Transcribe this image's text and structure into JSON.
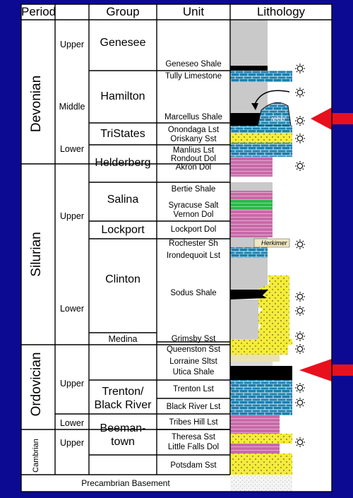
{
  "headers": {
    "period": "Period",
    "group": "Group",
    "unit": "Unit",
    "lithology": "Lithology"
  },
  "periods": {
    "devonian": "Devonian",
    "silurian": "Silurian",
    "ordovician": "Ordovician",
    "cambrian": "Cambrian"
  },
  "subdivisions": {
    "dev_upper": "Upper",
    "dev_middle": "Middle",
    "dev_lower": "Lower",
    "sil_upper": "Upper",
    "sil_lower": "Lower",
    "ord_upper": "Upper",
    "ord_lower": "Lower",
    "cam_upper": "Upper"
  },
  "groups": {
    "genesee": "Genesee",
    "hamilton": "Hamilton",
    "tristates": "TriStates",
    "helderberg": "Helderberg",
    "salina": "Salina",
    "lockport": "Lockport",
    "clinton": "Clinton",
    "medina": "Medina",
    "trenton_1": "Trenton/",
    "trenton_2": "Black River",
    "beeman_1": "Beeman-",
    "beeman_2": "town"
  },
  "units": {
    "geneseo": "Geneseo Shale",
    "tully": "Tully Limestone",
    "marcellus": "Marcellus Shale",
    "onondaga": "Onondaga Lst",
    "oriskany": "Oriskany Sst",
    "manlius": "Manlius Lst",
    "rondout": "Rondout Dol",
    "akron": "Akron Dol",
    "bertie": "Bertie Shale",
    "syracuse": "Syracuse Salt",
    "vernon": "Vernon Dol",
    "lockport": "Lockport Dol",
    "rochester": "Rochester Sh",
    "irondequoit": "Irondequoit Lst",
    "sodus": "Sodus Shale",
    "grimsby": "Grimsby Sst",
    "queenston": "Queenston Sst",
    "lorraine": "Lorraine Sltst",
    "utica": "Utica Shale",
    "trenton": "Trenton Lst",
    "blackriver": "Black River Lst",
    "tribes": "Tribes Hill Lst",
    "theresa": "Theresa Sst",
    "littlefalls": "Little Falls Dol",
    "potsdam": "Potsdam Sst"
  },
  "basement": "Precambrian Basement",
  "annotations": {
    "reefs": "reefs",
    "herkimer": "Herkimer"
  },
  "colors": {
    "background": "#0c0a93",
    "arrow": "#e8101d",
    "limestone": "#1c7fae",
    "sandstone": "#f5ec3a",
    "dolomite": "#c86aa8",
    "shale_black": "#000000",
    "shale_gray": "#c9c9c9",
    "salt": "#2db84a"
  }
}
